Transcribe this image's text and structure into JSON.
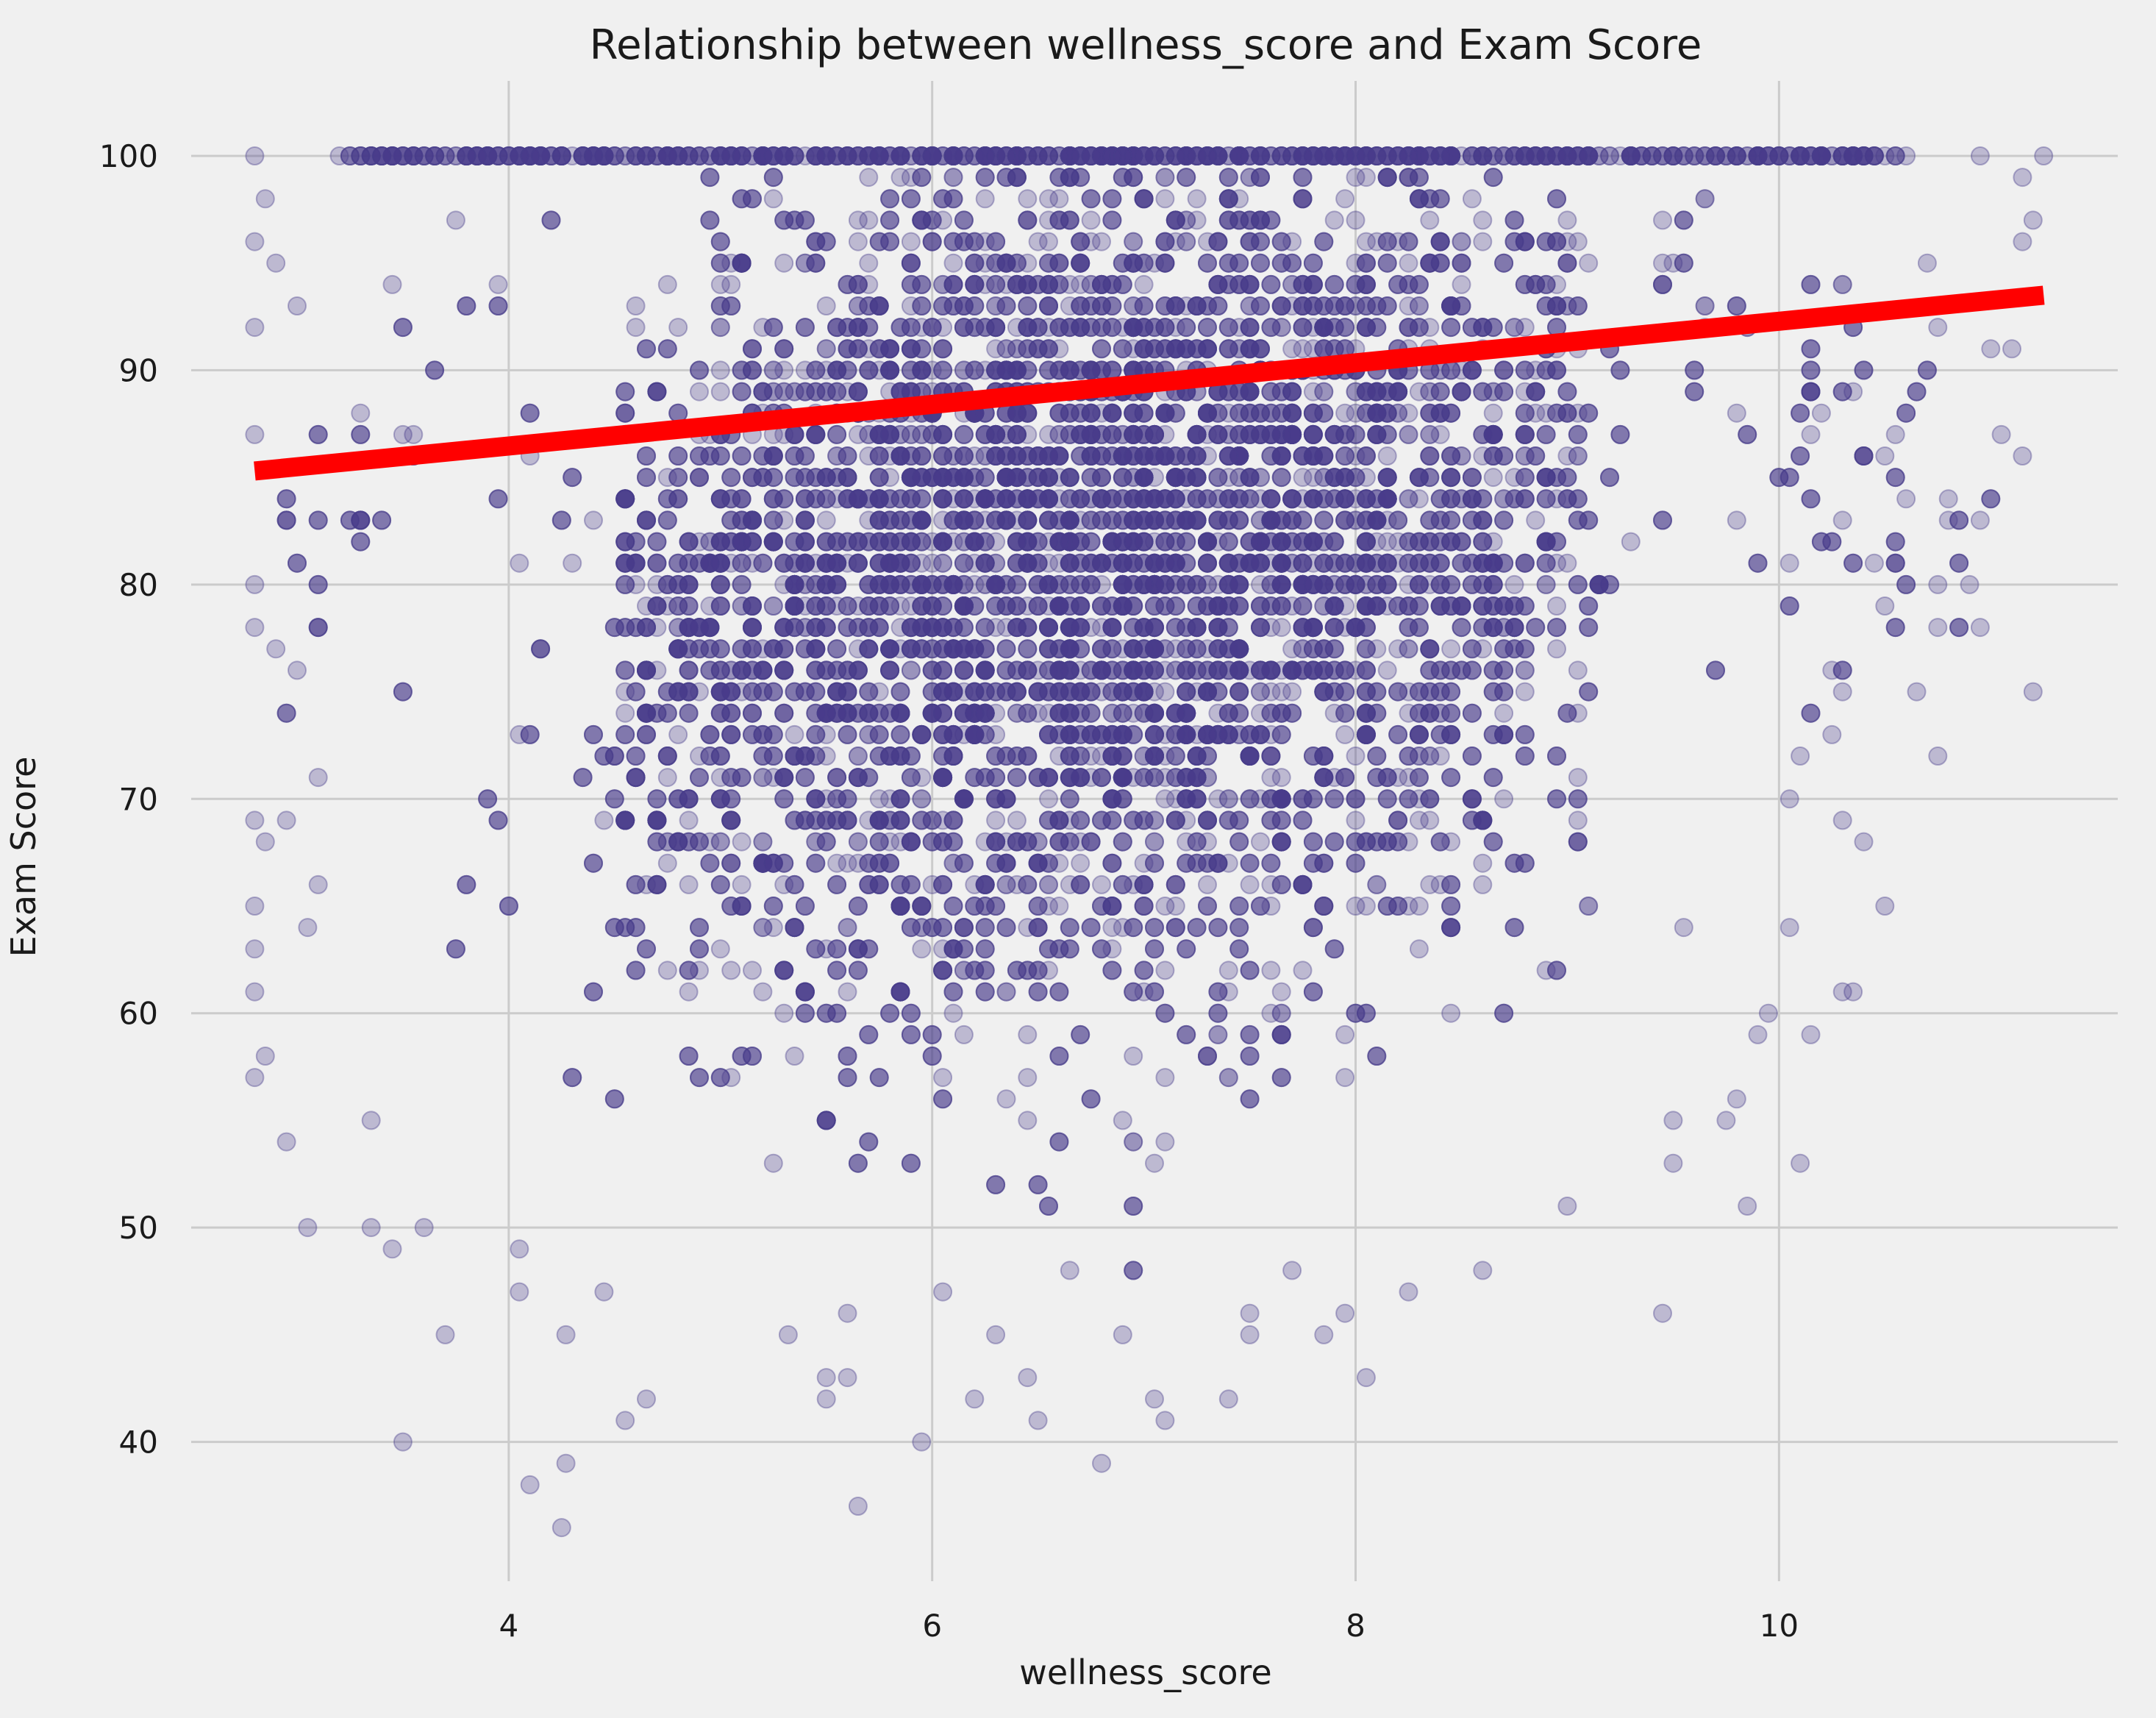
{
  "chart_data": {
    "type": "scatter",
    "title": "Relationship between wellness_score and Exam Score",
    "xlabel": "wellness_score",
    "ylabel": "Exam Score",
    "xlim": [
      2.5,
      11.6
    ],
    "ylim": [
      33.5,
      103.5
    ],
    "xticks": [
      4,
      6,
      8,
      10
    ],
    "yticks": [
      40,
      50,
      60,
      70,
      80,
      90,
      100
    ],
    "grid": true,
    "legend": "none",
    "colors": {
      "points": "#483d8b",
      "trend": "#ff0000",
      "background": "#f0f0f0",
      "grid": "#cbcbcb"
    },
    "point_alpha": 0.3,
    "scatter_cloud": {
      "x_range": [
        2.8,
        11.2
      ],
      "y_range": [
        36,
        100
      ],
      "x_center": 6.8,
      "y_center": 80,
      "description": "dense cloud; most points between x 4 and 9.5 with scores 55-100, scores capped at 100"
    },
    "points": [
      {
        "x": 3.5,
        "y": 40
      },
      {
        "x": 4.1,
        "y": 38
      },
      {
        "x": 4.25,
        "y": 36
      },
      {
        "x": 4.27,
        "y": 39
      },
      {
        "x": 5.65,
        "y": 37
      },
      {
        "x": 6.8,
        "y": 39
      },
      {
        "x": 6.5,
        "y": 41
      },
      {
        "x": 7.1,
        "y": 41
      },
      {
        "x": 4.55,
        "y": 41
      },
      {
        "x": 4.65,
        "y": 42
      },
      {
        "x": 5.5,
        "y": 42
      },
      {
        "x": 6.2,
        "y": 42
      },
      {
        "x": 7.05,
        "y": 42
      },
      {
        "x": 7.4,
        "y": 42
      },
      {
        "x": 8.05,
        "y": 43
      },
      {
        "x": 6.45,
        "y": 43
      },
      {
        "x": 5.5,
        "y": 43
      },
      {
        "x": 3.7,
        "y": 45
      },
      {
        "x": 4.27,
        "y": 45
      },
      {
        "x": 5.32,
        "y": 45
      },
      {
        "x": 6.3,
        "y": 45
      },
      {
        "x": 6.9,
        "y": 45
      },
      {
        "x": 7.5,
        "y": 45
      },
      {
        "x": 7.85,
        "y": 45
      },
      {
        "x": 9.45,
        "y": 46
      },
      {
        "x": 7.95,
        "y": 46
      },
      {
        "x": 5.6,
        "y": 46
      },
      {
        "x": 4.05,
        "y": 47
      },
      {
        "x": 4.45,
        "y": 47
      },
      {
        "x": 6.05,
        "y": 47
      },
      {
        "x": 8.25,
        "y": 47
      },
      {
        "x": 6.65,
        "y": 48
      },
      {
        "x": 7.7,
        "y": 48
      },
      {
        "x": 8.6,
        "y": 48
      },
      {
        "x": 3.45,
        "y": 49
      },
      {
        "x": 4.05,
        "y": 49
      },
      {
        "x": 9.85,
        "y": 51
      },
      {
        "x": 9.0,
        "y": 51
      },
      {
        "x": 10.1,
        "y": 53
      },
      {
        "x": 3.05,
        "y": 50
      },
      {
        "x": 3.35,
        "y": 50
      },
      {
        "x": 3.6,
        "y": 50
      },
      {
        "x": 2.95,
        "y": 54
      },
      {
        "x": 3.35,
        "y": 55
      },
      {
        "x": 9.5,
        "y": 55
      },
      {
        "x": 9.75,
        "y": 55
      },
      {
        "x": 9.5,
        "y": 53
      },
      {
        "x": 2.8,
        "y": 57
      },
      {
        "x": 2.85,
        "y": 58
      },
      {
        "x": 9.8,
        "y": 56
      },
      {
        "x": 9.9,
        "y": 59
      },
      {
        "x": 10.15,
        "y": 59
      },
      {
        "x": 9.95,
        "y": 60
      },
      {
        "x": 9.55,
        "y": 64
      },
      {
        "x": 10.05,
        "y": 64
      },
      {
        "x": 10.3,
        "y": 61
      },
      {
        "x": 10.35,
        "y": 61
      },
      {
        "x": 10.5,
        "y": 65
      },
      {
        "x": 10.4,
        "y": 68
      },
      {
        "x": 10.3,
        "y": 69
      },
      {
        "x": 10.05,
        "y": 70
      },
      {
        "x": 10.1,
        "y": 72
      },
      {
        "x": 10.25,
        "y": 73
      },
      {
        "x": 10.3,
        "y": 75
      },
      {
        "x": 10.65,
        "y": 75
      },
      {
        "x": 11.2,
        "y": 75
      },
      {
        "x": 10.25,
        "y": 76
      },
      {
        "x": 10.5,
        "y": 79
      },
      {
        "x": 10.9,
        "y": 80
      },
      {
        "x": 10.55,
        "y": 81
      },
      {
        "x": 10.95,
        "y": 83
      },
      {
        "x": 10.6,
        "y": 84
      },
      {
        "x": 10.8,
        "y": 84
      },
      {
        "x": 11.15,
        "y": 86
      },
      {
        "x": 11.05,
        "y": 87
      },
      {
        "x": 10.5,
        "y": 86
      },
      {
        "x": 10.35,
        "y": 89
      },
      {
        "x": 11.1,
        "y": 91
      },
      {
        "x": 10.75,
        "y": 92
      },
      {
        "x": 10.7,
        "y": 95
      },
      {
        "x": 11.15,
        "y": 96
      },
      {
        "x": 11.2,
        "y": 97
      },
      {
        "x": 11.15,
        "y": 99
      },
      {
        "x": 11.25,
        "y": 100
      },
      {
        "x": 10.95,
        "y": 100
      },
      {
        "x": 2.8,
        "y": 100
      },
      {
        "x": 2.8,
        "y": 96
      },
      {
        "x": 2.8,
        "y": 92
      },
      {
        "x": 2.8,
        "y": 87
      },
      {
        "x": 2.8,
        "y": 80
      },
      {
        "x": 2.8,
        "y": 78
      },
      {
        "x": 2.8,
        "y": 69
      },
      {
        "x": 2.8,
        "y": 65
      },
      {
        "x": 2.8,
        "y": 63
      },
      {
        "x": 2.8,
        "y": 61
      },
      {
        "x": 2.85,
        "y": 68
      },
      {
        "x": 2.9,
        "y": 77
      },
      {
        "x": 2.95,
        "y": 83
      },
      {
        "x": 3.0,
        "y": 76
      },
      {
        "x": 3.05,
        "y": 64
      },
      {
        "x": 3.1,
        "y": 66
      },
      {
        "x": 2.85,
        "y": 98
      },
      {
        "x": 2.9,
        "y": 95
      },
      {
        "x": 3.0,
        "y": 93
      }
    ],
    "trendline": {
      "x": [
        2.8,
        11.25
      ],
      "y": [
        85.3,
        93.5
      ]
    }
  }
}
